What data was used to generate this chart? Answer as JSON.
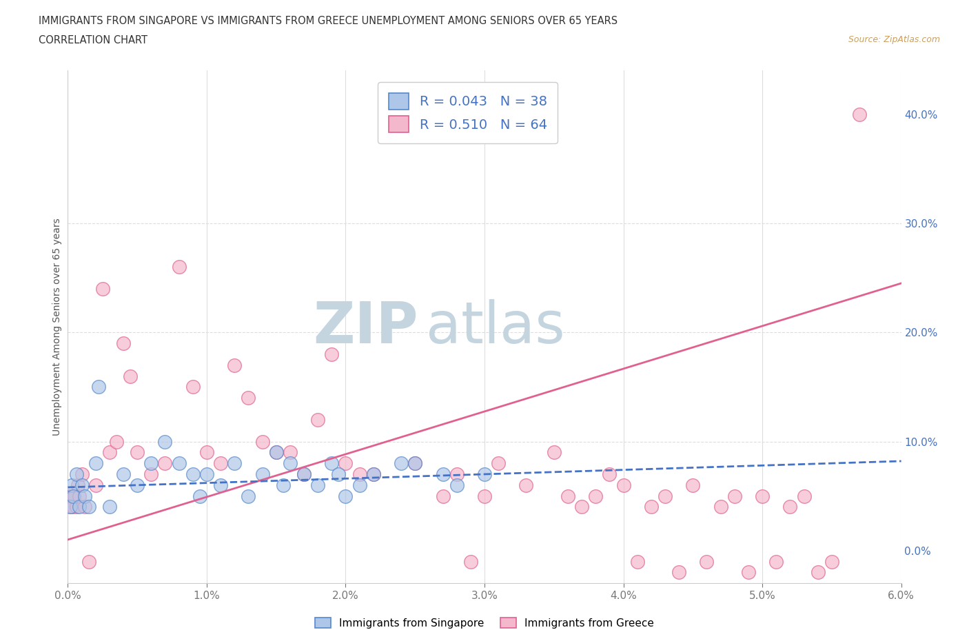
{
  "title_line1": "IMMIGRANTS FROM SINGAPORE VS IMMIGRANTS FROM GREECE UNEMPLOYMENT AMONG SENIORS OVER 65 YEARS",
  "title_line2": "CORRELATION CHART",
  "source_text": "Source: ZipAtlas.com",
  "ylabel": "Unemployment Among Seniors over 65 years",
  "xlim": [
    0.0,
    0.06
  ],
  "ylim": [
    -0.03,
    0.44
  ],
  "xticks": [
    0.0,
    0.01,
    0.02,
    0.03,
    0.04,
    0.05,
    0.06
  ],
  "xtick_labels": [
    "0.0%",
    "1.0%",
    "2.0%",
    "3.0%",
    "4.0%",
    "5.0%",
    "6.0%"
  ],
  "yticks_right": [
    0.0,
    0.1,
    0.2,
    0.3,
    0.4
  ],
  "ytick_labels_right": [
    "0.0%",
    "10.0%",
    "20.0%",
    "30.0%",
    "40.0%"
  ],
  "singapore_color": "#aec6e8",
  "greece_color": "#f4b8cc",
  "singapore_edge": "#5588cc",
  "greece_edge": "#e06090",
  "trend_singapore_color": "#4472C4",
  "trend_greece_color": "#e06090",
  "singapore_R": 0.043,
  "singapore_N": 38,
  "greece_R": 0.51,
  "greece_N": 64,
  "watermark_zip": "ZIP",
  "watermark_atlas": "atlas",
  "watermark_color": "#d0dde8",
  "grid_color": "#dddddd",
  "singapore_x": [
    0.0002,
    0.0003,
    0.0004,
    0.0006,
    0.0008,
    0.001,
    0.0012,
    0.0015,
    0.002,
    0.0022,
    0.003,
    0.004,
    0.005,
    0.006,
    0.007,
    0.008,
    0.009,
    0.0095,
    0.01,
    0.011,
    0.012,
    0.013,
    0.014,
    0.015,
    0.0155,
    0.016,
    0.017,
    0.018,
    0.019,
    0.0195,
    0.02,
    0.021,
    0.022,
    0.024,
    0.025,
    0.027,
    0.028,
    0.03
  ],
  "singapore_y": [
    0.04,
    0.06,
    0.05,
    0.07,
    0.04,
    0.06,
    0.05,
    0.04,
    0.08,
    0.15,
    0.04,
    0.07,
    0.06,
    0.08,
    0.1,
    0.08,
    0.07,
    0.05,
    0.07,
    0.06,
    0.08,
    0.05,
    0.07,
    0.09,
    0.06,
    0.08,
    0.07,
    0.06,
    0.08,
    0.07,
    0.05,
    0.06,
    0.07,
    0.08,
    0.08,
    0.07,
    0.06,
    0.07
  ],
  "greece_x": [
    0.0001,
    0.0002,
    0.0003,
    0.0004,
    0.0005,
    0.0006,
    0.0007,
    0.0008,
    0.001,
    0.0012,
    0.0015,
    0.002,
    0.0025,
    0.003,
    0.0035,
    0.004,
    0.0045,
    0.005,
    0.006,
    0.007,
    0.008,
    0.009,
    0.01,
    0.011,
    0.012,
    0.013,
    0.014,
    0.015,
    0.016,
    0.017,
    0.018,
    0.019,
    0.02,
    0.021,
    0.022,
    0.025,
    0.027,
    0.028,
    0.029,
    0.03,
    0.031,
    0.033,
    0.035,
    0.036,
    0.037,
    0.038,
    0.039,
    0.04,
    0.041,
    0.042,
    0.043,
    0.044,
    0.045,
    0.046,
    0.047,
    0.048,
    0.049,
    0.05,
    0.051,
    0.052,
    0.053,
    0.054,
    0.055,
    0.057
  ],
  "greece_y": [
    0.05,
    0.04,
    0.05,
    0.04,
    0.05,
    0.04,
    0.06,
    0.05,
    0.07,
    0.04,
    -0.01,
    0.06,
    0.24,
    0.09,
    0.1,
    0.19,
    0.16,
    0.09,
    0.07,
    0.08,
    0.26,
    0.15,
    0.09,
    0.08,
    0.17,
    0.14,
    0.1,
    0.09,
    0.09,
    0.07,
    0.12,
    0.18,
    0.08,
    0.07,
    0.07,
    0.08,
    0.05,
    0.07,
    -0.01,
    0.05,
    0.08,
    0.06,
    0.09,
    0.05,
    0.04,
    0.05,
    0.07,
    0.06,
    -0.01,
    0.04,
    0.05,
    -0.02,
    0.06,
    -0.01,
    0.04,
    0.05,
    -0.02,
    0.05,
    -0.01,
    0.04,
    0.05,
    -0.02,
    -0.01,
    0.4
  ],
  "greece_trend_x0": 0.0,
  "greece_trend_y0": 0.01,
  "greece_trend_x1": 0.06,
  "greece_trend_y1": 0.245,
  "singapore_trend_x0": 0.0,
  "singapore_trend_y0": 0.058,
  "singapore_trend_x1": 0.06,
  "singapore_trend_y1": 0.082
}
